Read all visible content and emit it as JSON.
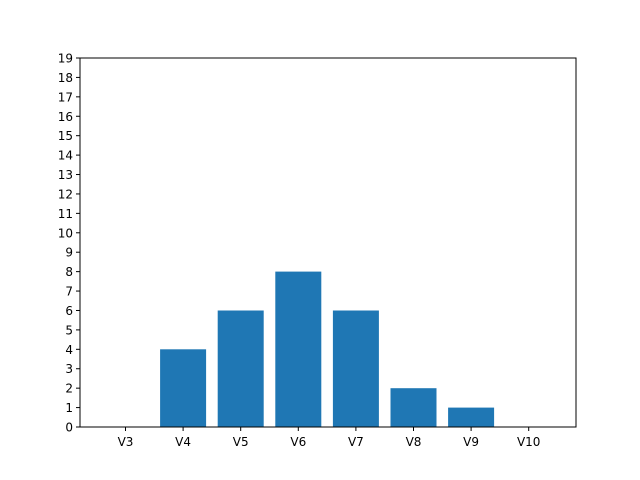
{
  "chart_data": {
    "type": "bar",
    "categories": [
      "V3",
      "V4",
      "V5",
      "V6",
      "V7",
      "V8",
      "V9",
      "V10"
    ],
    "values": [
      0,
      4,
      6,
      8,
      6,
      2,
      1,
      0
    ],
    "yticks": [
      "0",
      "1",
      "2",
      "3",
      "4",
      "5",
      "6",
      "7",
      "8",
      "9",
      "10",
      "11",
      "12",
      "13",
      "14",
      "15",
      "16",
      "17",
      "18",
      "19"
    ],
    "ylim": [
      0,
      19
    ],
    "grid": false,
    "legend": "none",
    "colors": {
      "bar": "#1f77b4",
      "axis": "#000000",
      "background": "#ffffff"
    }
  }
}
